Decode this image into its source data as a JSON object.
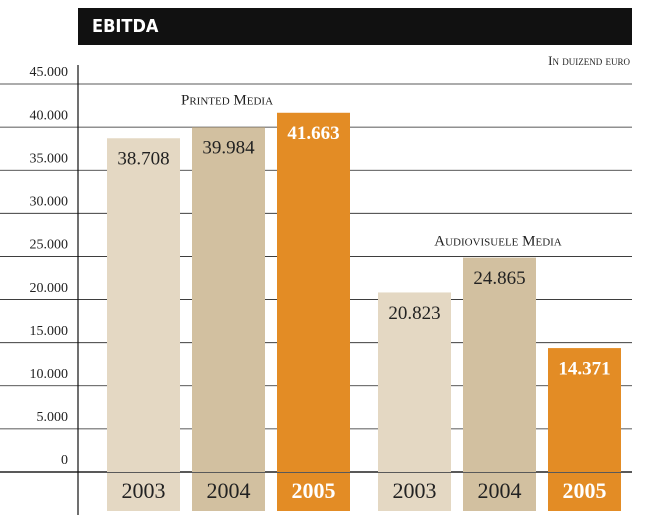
{
  "chart_data": {
    "type": "bar",
    "title": "EBITDA",
    "unit_label": "In duizend euro",
    "ylim": [
      0,
      45000
    ],
    "yticks": [
      0,
      {
        "value": 5000,
        "label": "5.000"
      },
      {
        "value": 10000,
        "label": "10.000"
      },
      {
        "value": 15000,
        "label": "15.000"
      },
      {
        "value": 20000,
        "label": "20.000"
      },
      {
        "value": 25000,
        "label": "25.000"
      },
      {
        "value": 30000,
        "label": "30.000"
      },
      {
        "value": 35000,
        "label": "35.000"
      },
      {
        "value": 40000,
        "label": "40.000"
      },
      {
        "value": 45000,
        "label": "45.000"
      }
    ],
    "grid": true,
    "groups": [
      {
        "label": "Printed Media",
        "categories": [
          "2003",
          "2004",
          "2005"
        ],
        "values": [
          38708,
          39984,
          41663
        ],
        "value_labels": [
          "38.708",
          "39.984",
          "41.663"
        ],
        "colors": [
          "#e4d8c3",
          "#d2c0a0",
          "#e38c25"
        ]
      },
      {
        "label": "Audiovisuele Media",
        "categories": [
          "2003",
          "2004",
          "2005"
        ],
        "values": [
          20823,
          24865,
          14371
        ],
        "value_labels": [
          "20.823",
          "24.865",
          "14.371"
        ],
        "colors": [
          "#e4d8c3",
          "#d2c0a0",
          "#e38c25"
        ]
      }
    ]
  }
}
